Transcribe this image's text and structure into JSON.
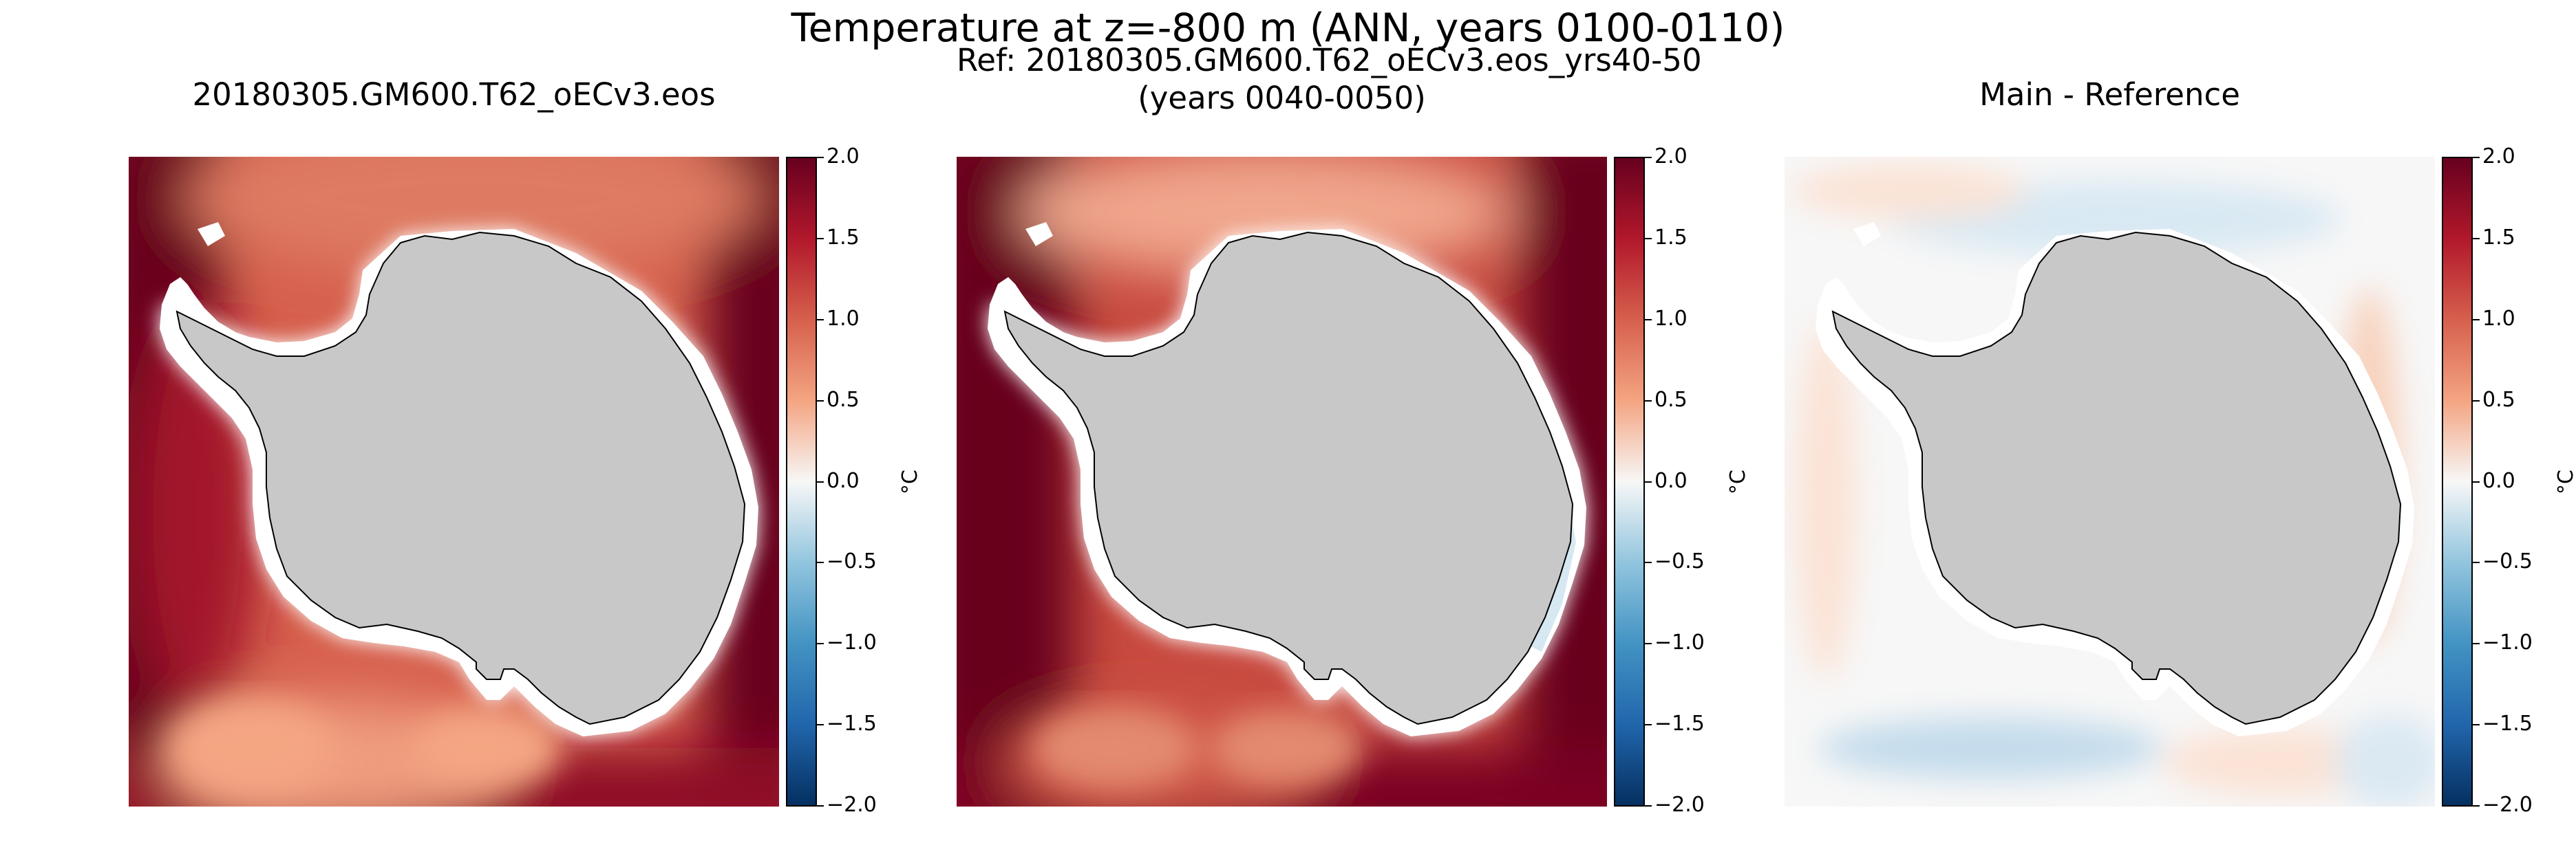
{
  "figure": {
    "title": "Temperature at z=-800 m (ANN, years 0100-0110)"
  },
  "panels": [
    {
      "title_lines": [
        "20180305.GM600.T62_oECv3.eos"
      ],
      "field": "main",
      "colorbar": {
        "unit": "°C",
        "ticks": [
          "2.0",
          "1.5",
          "1.0",
          "0.5",
          "0.0",
          "−0.5",
          "−1.0",
          "−1.5",
          "−2.0"
        ]
      }
    },
    {
      "title_lines": [
        "Ref: 20180305.GM600.T62_oECv3.eos_yrs40-50",
        "(years 0040-0050)"
      ],
      "field": "reference",
      "colorbar": {
        "unit": "°C",
        "ticks": [
          "2.0",
          "1.5",
          "1.0",
          "0.5",
          "0.0",
          "−0.5",
          "−1.0",
          "−1.5",
          "−2.0"
        ]
      }
    },
    {
      "title_lines": [
        "Main - Reference"
      ],
      "field": "difference",
      "colorbar": {
        "unit": "°C",
        "ticks": [
          "2.0",
          "1.5",
          "1.0",
          "0.5",
          "0.0",
          "−0.5",
          "−1.0",
          "−1.5",
          "−2.0"
        ]
      }
    }
  ],
  "colorscale": {
    "name": "RdBu_r",
    "range": [
      -2.0,
      2.0
    ],
    "stops": [
      "#053061",
      "#2166ac",
      "#4393c3",
      "#92c5de",
      "#f7f7f7",
      "#f4a582",
      "#d6604d",
      "#b2182b",
      "#67001f"
    ]
  },
  "colors": {
    "land": "#c8c8c8",
    "no_data": "#ffffff"
  }
}
